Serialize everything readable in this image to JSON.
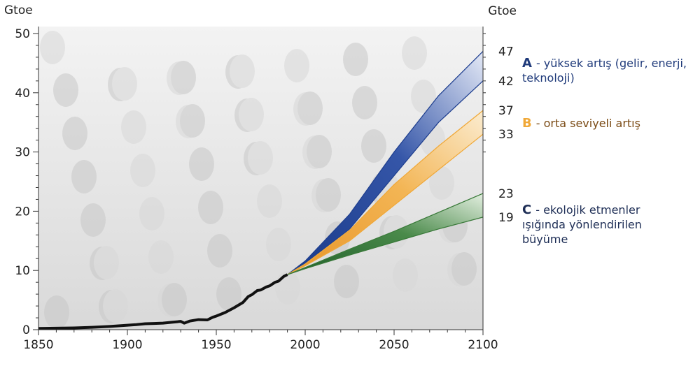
{
  "chart_data": {
    "type": "area",
    "y_unit_left": "Gtoe",
    "y_unit_right": "Gtoe",
    "xlim": [
      1850,
      2100
    ],
    "ylim": [
      0,
      50
    ],
    "x_ticks": [
      "1850",
      "1900",
      "1950",
      "2000",
      "2050",
      "2100"
    ],
    "y_ticks": [
      "0",
      "10",
      "20",
      "30",
      "40",
      "50"
    ],
    "historical": {
      "x": [
        1850,
        1860,
        1870,
        1880,
        1890,
        1900,
        1905,
        1910,
        1915,
        1920,
        1925,
        1930,
        1932,
        1935,
        1940,
        1945,
        1948,
        1950,
        1955,
        1960,
        1965,
        1968,
        1970,
        1973,
        1975,
        1978,
        1980,
        1983,
        1985,
        1988,
        1990
      ],
      "y": [
        0.2,
        0.25,
        0.3,
        0.4,
        0.55,
        0.75,
        0.85,
        1.0,
        1.05,
        1.1,
        1.25,
        1.4,
        1.1,
        1.45,
        1.7,
        1.65,
        2.1,
        2.3,
        2.9,
        3.7,
        4.6,
        5.6,
        5.9,
        6.6,
        6.7,
        7.2,
        7.4,
        8.0,
        8.2,
        9.0,
        9.3
      ]
    },
    "scenarios": [
      {
        "id": "A",
        "key_letter": "A",
        "label": "- yüksek artış (gelir, enerji, teknoloji)",
        "color": "#1f3f8f",
        "x": [
          1990,
          2000,
          2025,
          2050,
          2075,
          2100
        ],
        "lower": [
          9.3,
          11.2,
          17.0,
          26.0,
          35.0,
          42.0
        ],
        "upper": [
          9.3,
          11.6,
          19.5,
          30.0,
          39.5,
          47.0
        ],
        "end_labels": [
          "47",
          "42"
        ]
      },
      {
        "id": "B",
        "key_letter": "B",
        "label": "- orta seviyeli artış",
        "color": "#f0a838",
        "x": [
          1990,
          2000,
          2025,
          2050,
          2075,
          2100
        ],
        "lower": [
          9.3,
          10.8,
          15.0,
          21.0,
          27.0,
          33.0
        ],
        "upper": [
          9.3,
          11.1,
          16.8,
          24.5,
          31.0,
          37.0
        ],
        "end_labels": [
          "37",
          "33"
        ]
      },
      {
        "id": "C",
        "key_letter": "C",
        "label": "- ekolojik etmenler ışığında yönlendirilen büyüme",
        "color": "#3a7a3a",
        "x": [
          1990,
          2000,
          2025,
          2050,
          2075,
          2100
        ],
        "lower": [
          9.3,
          10.3,
          12.6,
          14.8,
          17.0,
          19.0
        ],
        "upper": [
          9.3,
          10.5,
          13.6,
          16.6,
          19.8,
          23.0
        ],
        "end_labels": [
          "23",
          "19"
        ]
      }
    ],
    "grid": false,
    "legend_position": "right"
  },
  "legend": {
    "A_letter": "A",
    "A_text": "- yüksek artış (gelir, enerji, teknoloji)",
    "B_letter": "B",
    "B_text": "- orta seviyeli artış",
    "C_letter": "C",
    "C_text": "- ekolojik etmenler ışığında yönlendirilen büyüme"
  }
}
